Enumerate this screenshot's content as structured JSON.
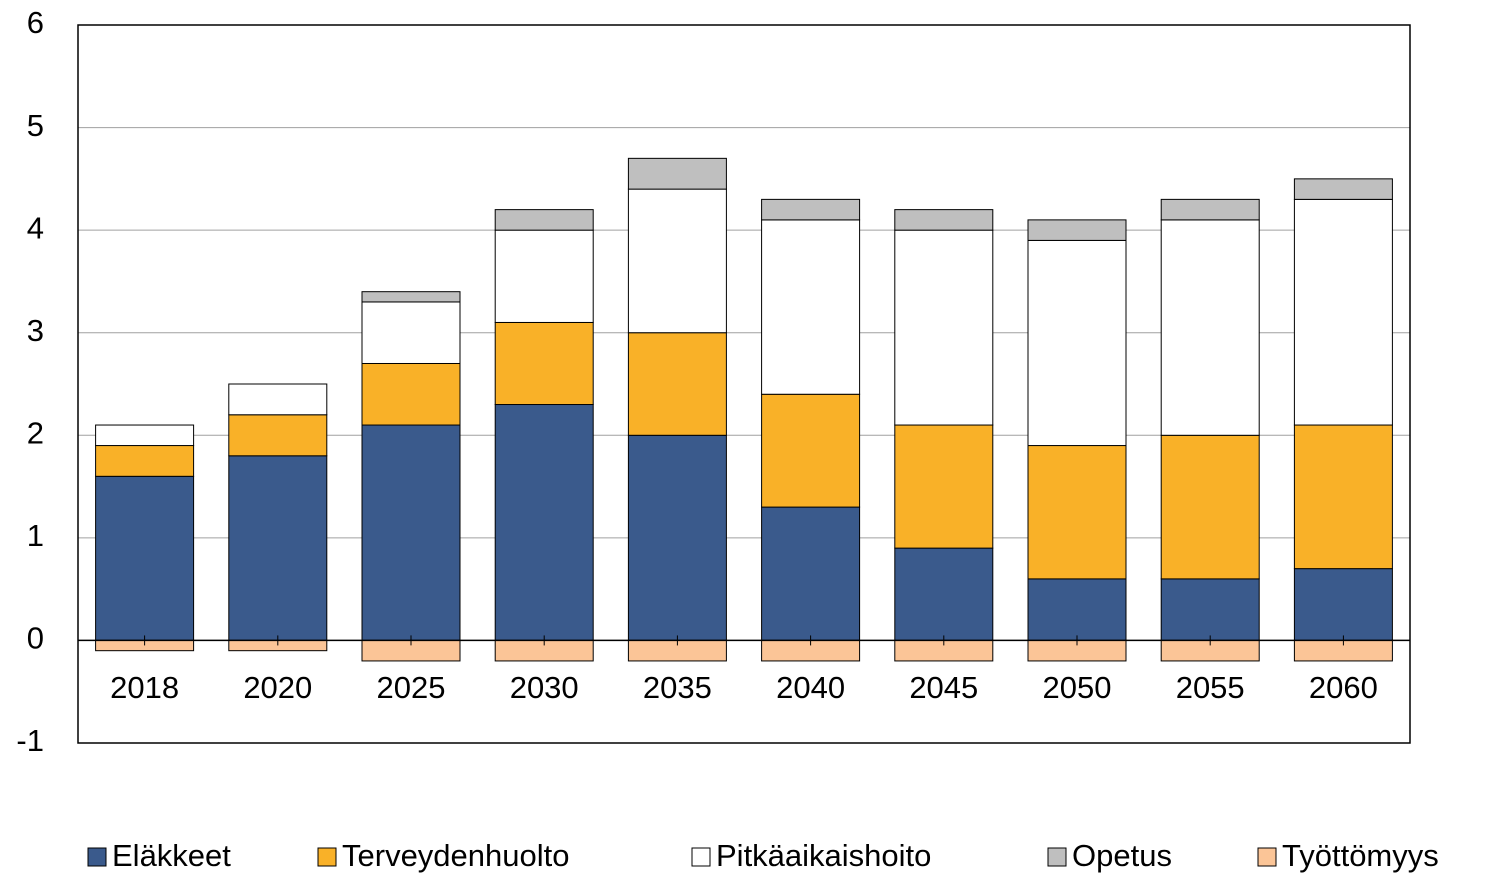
{
  "chart_data": {
    "type": "stacked-bar",
    "categories": [
      "2018",
      "2020",
      "2025",
      "2030",
      "2035",
      "2040",
      "2045",
      "2050",
      "2055",
      "2060"
    ],
    "series": [
      {
        "name": "Eläkkeet",
        "color": "#3a5a8c",
        "values": [
          1.6,
          1.8,
          2.1,
          2.3,
          2.0,
          1.3,
          0.9,
          0.6,
          0.6,
          0.7
        ]
      },
      {
        "name": "Terveydenhuolto",
        "color": "#f9b128",
        "values": [
          0.3,
          0.4,
          0.6,
          0.8,
          1.0,
          1.1,
          1.2,
          1.3,
          1.4,
          1.4
        ]
      },
      {
        "name": "Pitkäaikaishoito",
        "color": "#ffffff",
        "values": [
          0.2,
          0.3,
          0.6,
          0.9,
          1.4,
          1.7,
          1.9,
          2.0,
          2.1,
          2.2
        ]
      },
      {
        "name": "Opetus",
        "color": "#bfbfbf",
        "values": [
          0,
          0,
          0.1,
          0.2,
          0.3,
          0.2,
          0.2,
          0.2,
          0.2,
          0.2
        ]
      },
      {
        "name": "Työttömyys",
        "color": "#fbc597",
        "values": [
          -0.1,
          -0.1,
          -0.2,
          -0.2,
          -0.2,
          -0.2,
          -0.2,
          -0.2,
          -0.2,
          -0.2
        ]
      }
    ],
    "ylim": [
      -1,
      6
    ],
    "yticks": [
      -1,
      0,
      1,
      2,
      3,
      4,
      5,
      6
    ],
    "grid": true
  }
}
